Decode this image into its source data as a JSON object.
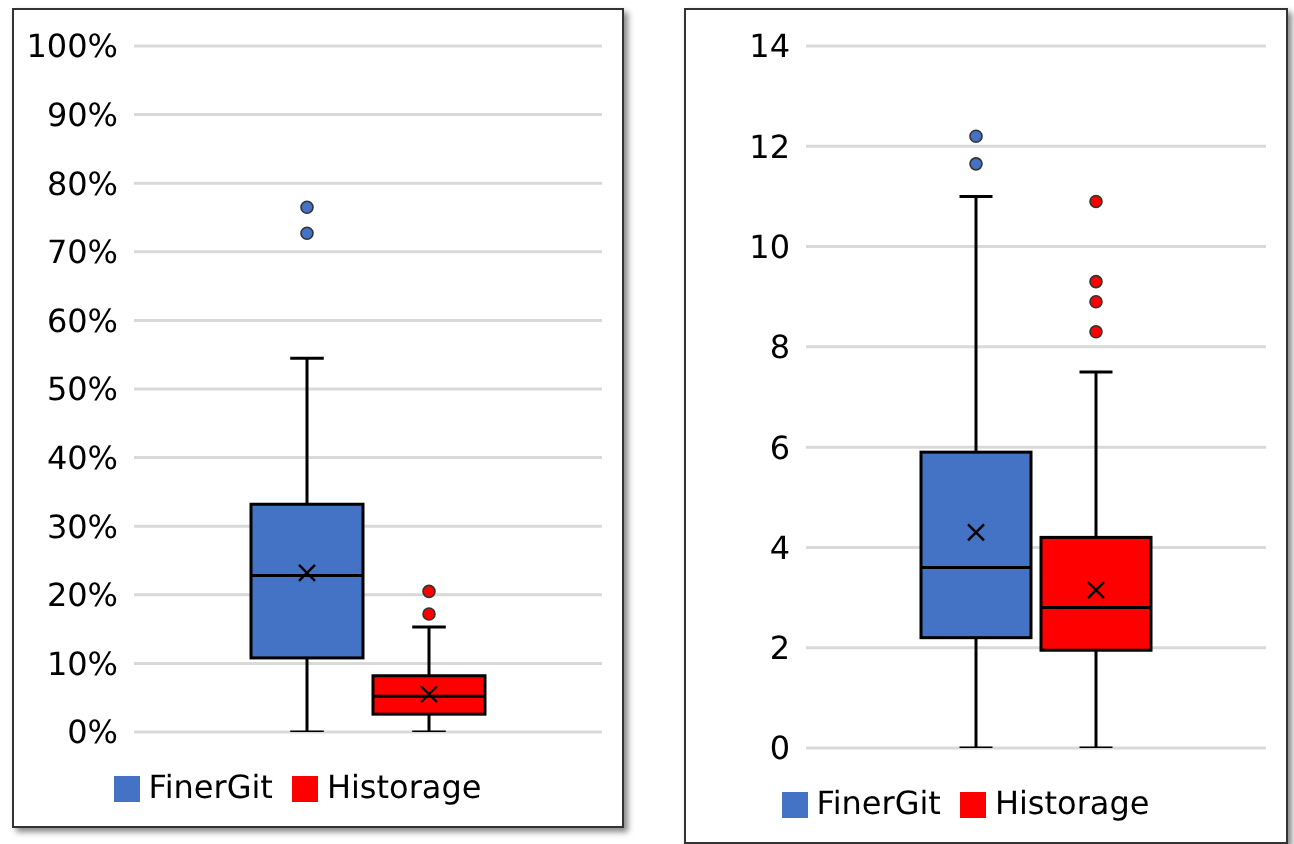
{
  "chart_data": [
    {
      "type": "box",
      "categories": [
        null
      ],
      "series": [
        {
          "name": "FinerGit",
          "color": "#4472c4",
          "boxes": [
            {
              "low": 0,
              "q1": 10.8,
              "median": 22.8,
              "q3": 33.2,
              "high": 54.5,
              "mean": 23.2,
              "outliers": [
                72.7,
                76.5
              ]
            }
          ]
        },
        {
          "name": "Historage",
          "color": "#ff0000",
          "boxes": [
            {
              "low": 0,
              "q1": 2.6,
              "median": 5.2,
              "q3": 8.2,
              "high": 15.3,
              "mean": 5.5,
              "outliers": [
                17.2,
                20.5
              ]
            }
          ]
        }
      ],
      "ylim": [
        0,
        100
      ],
      "yticks": [
        {
          "value": 0,
          "label": "0%"
        },
        {
          "value": 10,
          "label": "10%"
        },
        {
          "value": 20,
          "label": "20%"
        },
        {
          "value": 30,
          "label": "30%"
        },
        {
          "value": 40,
          "label": "40%"
        },
        {
          "value": 50,
          "label": "50%"
        },
        {
          "value": 60,
          "label": "60%"
        },
        {
          "value": 70,
          "label": "70%"
        },
        {
          "value": 80,
          "label": "80%"
        },
        {
          "value": 90,
          "label": "90%"
        },
        {
          "value": 100,
          "label": "100%"
        }
      ],
      "grid": "y",
      "legend": "bottom"
    },
    {
      "type": "box",
      "categories": [
        null
      ],
      "series": [
        {
          "name": "FinerGit",
          "color": "#4472c4",
          "boxes": [
            {
              "low": 0,
              "q1": 2.2,
              "median": 3.6,
              "q3": 5.9,
              "high": 11.0,
              "mean": 4.3,
              "outliers": [
                11.65,
                12.2
              ]
            }
          ]
        },
        {
          "name": "Historage",
          "color": "#ff0000",
          "boxes": [
            {
              "low": 0,
              "q1": 1.95,
              "median": 2.8,
              "q3": 4.2,
              "high": 7.5,
              "mean": 3.15,
              "outliers": [
                8.3,
                8.9,
                9.3,
                10.9
              ]
            }
          ]
        }
      ],
      "ylim": [
        0,
        14
      ],
      "yticks": [
        0,
        2,
        4,
        6,
        8,
        10,
        12,
        14
      ],
      "grid": "y",
      "legend": "bottom"
    }
  ]
}
